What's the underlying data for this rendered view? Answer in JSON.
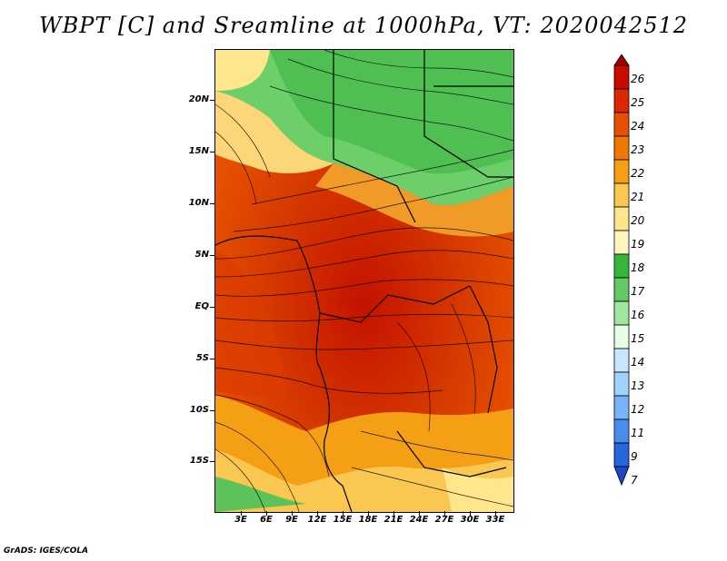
{
  "title": "WBPT [C] and Sreamline at 1000hPa, VT: 2020042512",
  "footer": "GrADS: IGES/COLA",
  "map": {
    "lat_labels": [
      "20N",
      "15N",
      "10N",
      "5N",
      "EQ",
      "5S",
      "10S",
      "15S"
    ],
    "lon_labels": [
      "3E",
      "6E",
      "9E",
      "12E",
      "15E",
      "18E",
      "21E",
      "24E",
      "27E",
      "30E",
      "33E"
    ],
    "field": "wet bulb potential temperature",
    "overlay": "streamlines"
  },
  "colorbar": {
    "labels": [
      "26",
      "25",
      "24",
      "23",
      "22",
      "21",
      "20",
      "19",
      "18",
      "17",
      "16",
      "15",
      "14",
      "13",
      "12",
      "11",
      "9",
      "7"
    ],
    "colors": [
      "#a50000",
      "#c80a00",
      "#dc2800",
      "#e65000",
      "#f07800",
      "#f5a014",
      "#fac850",
      "#fde68c",
      "#fff5c0",
      "#37b43c",
      "#64c864",
      "#a0e6a0",
      "#e6ffe6",
      "#c8e6ff",
      "#a0d2fa",
      "#78b4f5",
      "#4b8ceb",
      "#2864dc",
      "#1e46c8"
    ]
  }
}
